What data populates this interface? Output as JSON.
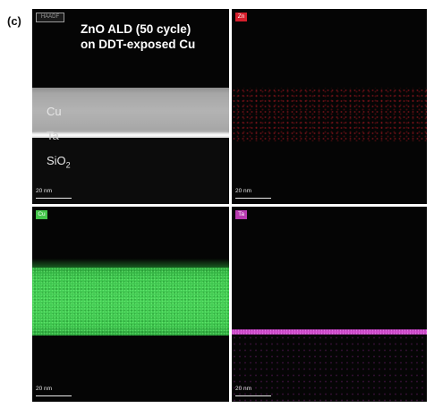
{
  "panel_letter": "(c)",
  "title_lines": [
    "ZnO ALD (50 cycle)",
    "on DDT-exposed Cu"
  ],
  "panels": {
    "haadf": {
      "tag": "HAADF",
      "layers": {
        "cu": "Cu",
        "ta": "Ta",
        "sio_base": "SiO",
        "sio_sub": "2"
      },
      "scalebar": "20 nm"
    },
    "zn": {
      "tag": "Zn",
      "tag_color": "#d61f2c",
      "scalebar": "20 nm"
    },
    "cu": {
      "tag": "Cu",
      "tag_color": "#44c44a",
      "scalebar": "20 nm"
    },
    "ta": {
      "tag": "Ta",
      "tag_color": "#b83ab0",
      "scalebar": "20 nm"
    }
  }
}
